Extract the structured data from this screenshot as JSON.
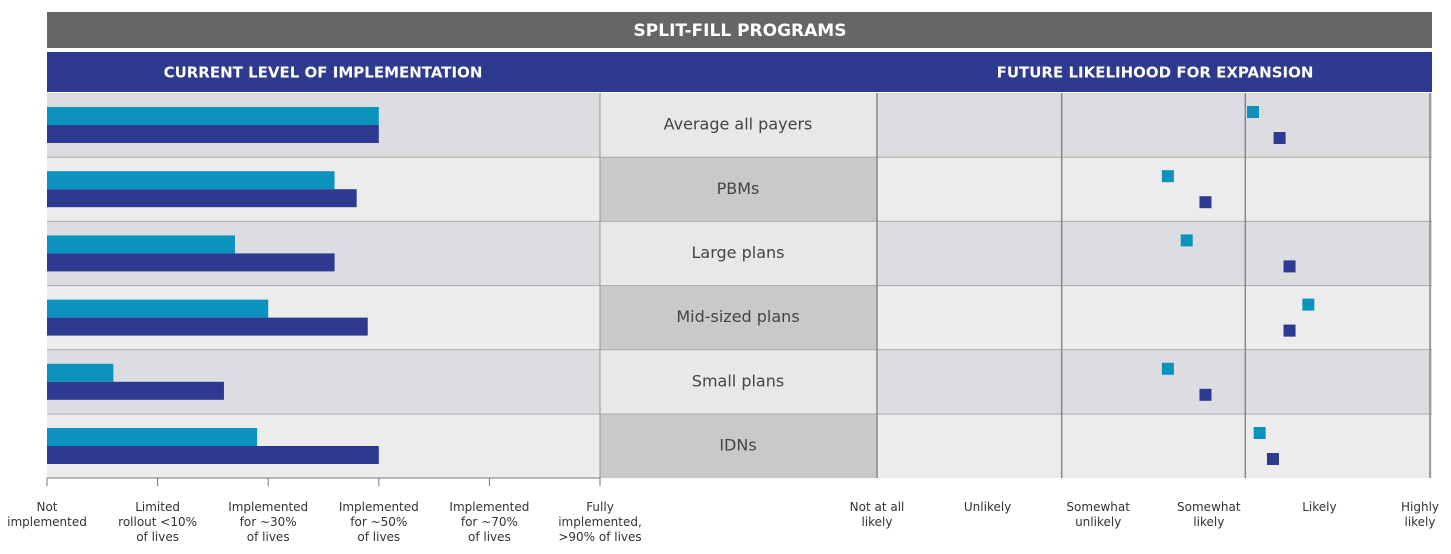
{
  "title": "SPLIT-FILL PROGRAMS",
  "chart_data": [
    {
      "type": "bar",
      "title": "CURRENT LEVEL OF IMPLEMENTATION",
      "categories": [
        "Average all payers",
        "PBMs",
        "Large plans",
        "Mid-sized plans",
        "Small plans",
        "IDNs"
      ],
      "series": [
        {
          "color": "#0b93bd",
          "values": [
            3.0,
            2.6,
            1.7,
            2.0,
            0.6,
            1.9
          ]
        },
        {
          "color": "#2e3a8f",
          "values": [
            3.0,
            2.8,
            2.6,
            2.9,
            1.6,
            3.0
          ]
        }
      ],
      "xlim": [
        0,
        5
      ],
      "xticks": [
        {
          "value": 0,
          "label": "Not\nimplemented"
        },
        {
          "value": 1,
          "label": "Limited\nrollout <10%\nof lives"
        },
        {
          "value": 2,
          "label": "Implemented\nfor ~30%\nof lives"
        },
        {
          "value": 3,
          "label": "Implemented\nfor ~50%\nof lives"
        },
        {
          "value": 4,
          "label": "Implemented\nfor ~70%\nof lives"
        },
        {
          "value": 5,
          "label": "Fully\nimplemented,\n>90% of lives"
        }
      ]
    },
    {
      "type": "dot",
      "title": "FUTURE LIKELIHOOD FOR EXPANSION",
      "series": [
        {
          "color": "#0b93bd",
          "values": [
            3.4,
            2.63,
            2.8,
            3.9,
            2.63,
            3.46
          ]
        },
        {
          "color": "#2e3a8f",
          "values": [
            3.64,
            2.97,
            3.73,
            3.73,
            2.97,
            3.58
          ]
        }
      ],
      "xlim": [
        0,
        5
      ],
      "xticks": [
        {
          "value": 0,
          "label": "Not at all\nlikely"
        },
        {
          "value": 1,
          "label": "Unlikely"
        },
        {
          "value": 2,
          "label": "Somewhat\nunlikely"
        },
        {
          "value": 3,
          "label": "Somewhat\nlikely"
        },
        {
          "value": 4,
          "label": "Likely"
        },
        {
          "value": 5,
          "label": "Highly\nlikely"
        }
      ],
      "xgrid": [
        0,
        1.67,
        3.33,
        5
      ]
    }
  ]
}
